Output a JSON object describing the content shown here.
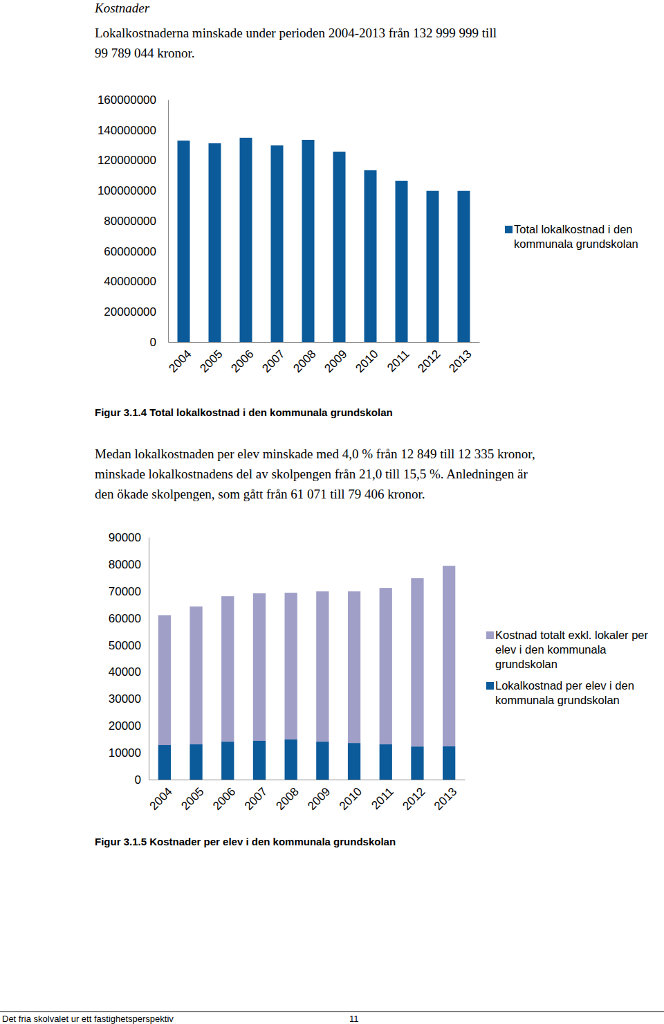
{
  "document": {
    "heading": "Kostnader",
    "paragraph_1": [
      "Lokalkostnaderna minskade under perioden 2004-2013 från 132 999 999 till",
      "99 789 044 kronor."
    ],
    "caption_1": "Figur 3.1.4 Total lokalkostnad i den kommunala grundskolan",
    "paragraph_2": [
      "Medan lokalkostnaden per elev minskade med 4,0 % från 12 849 till 12 335 kronor,",
      "minskade lokalkostnadens del av skolpengen från 21,0 till 15,5 %. Anledningen är",
      "den ökade skolpengen, som gått från 61 071 till 79 406 kronor."
    ],
    "caption_2": "Figur 3.1.5 Kostnader per elev i den kommunala grundskolan",
    "footer": "Det fria skolvalet ur ett fastighetsperspektiv",
    "page_number": "11"
  },
  "chart_data": [
    {
      "type": "bar",
      "categories": [
        "2004",
        "2005",
        "2006",
        "2007",
        "2008",
        "2009",
        "2010",
        "2011",
        "2012",
        "2013"
      ],
      "series": [
        {
          "name": "Total lokalkostnad i den kommunala grundskolan",
          "color": "#0b5a9a",
          "values": [
            132999999,
            131200000,
            134900000,
            129800000,
            133500000,
            125700000,
            113400000,
            106500000,
            99800000,
            99789044
          ]
        }
      ],
      "ylim": [
        0,
        160000000
      ],
      "yticks": [
        0,
        20000000,
        40000000,
        60000000,
        80000000,
        100000000,
        120000000,
        140000000,
        160000000
      ],
      "legend": "right"
    },
    {
      "type": "bar",
      "stacked": true,
      "categories": [
        "2004",
        "2005",
        "2006",
        "2007",
        "2008",
        "2009",
        "2010",
        "2011",
        "2012",
        "2013"
      ],
      "series": [
        {
          "name": "Lokalkostnad per elev i den kommunala grundskolan",
          "color": "#0b5a9a",
          "values": [
            12849,
            13100,
            14100,
            14400,
            14900,
            14100,
            13600,
            13100,
            12300,
            12335
          ]
        },
        {
          "name": "Kostnad totalt exkl. lokaler per elev i den kommunala grundskolan",
          "color": "#a09fc8",
          "values": [
            48222,
            51200,
            54000,
            54800,
            54500,
            55800,
            56300,
            58100,
            62500,
            67071
          ]
        }
      ],
      "ylim": [
        0,
        90000
      ],
      "yticks": [
        0,
        10000,
        20000,
        30000,
        40000,
        50000,
        60000,
        70000,
        80000,
        90000
      ],
      "legend": "right"
    }
  ]
}
